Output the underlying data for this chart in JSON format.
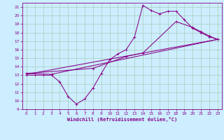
{
  "bg_color": "#cceeff",
  "grid_color": "#aaccbb",
  "line_color": "#880088",
  "marker_color": "#880088",
  "xlim": [
    -0.5,
    23.5
  ],
  "ylim": [
    9,
    21.5
  ],
  "xticks": [
    0,
    1,
    2,
    3,
    4,
    5,
    6,
    7,
    8,
    9,
    10,
    11,
    12,
    13,
    14,
    15,
    16,
    17,
    18,
    19,
    20,
    21,
    22,
    23
  ],
  "yticks": [
    9,
    10,
    11,
    12,
    13,
    14,
    15,
    16,
    17,
    18,
    19,
    20,
    21
  ],
  "xlabel": "Windchill (Refroidissement éolien,°C)",
  "line1_x": [
    0,
    1,
    2,
    3,
    4,
    5,
    6,
    7,
    8,
    9,
    10,
    11,
    12,
    13,
    14,
    15,
    16,
    17,
    18,
    19,
    20,
    21,
    22,
    23
  ],
  "line1_y": [
    13,
    13,
    13,
    13,
    12.2,
    10.5,
    9.6,
    10.2,
    11.5,
    13.2,
    14.8,
    15.5,
    16,
    17.5,
    21.2,
    20.6,
    20.2,
    20.5,
    20.5,
    19.5,
    18.5,
    18,
    17.5,
    17.2
  ],
  "line2_x": [
    0,
    3,
    23
  ],
  "line2_y": [
    13.2,
    13.1,
    17.2
  ],
  "line3_x": [
    0,
    23
  ],
  "line3_y": [
    13.1,
    17.2
  ],
  "line4_x": [
    0,
    8,
    12,
    14,
    18,
    20,
    21,
    22,
    23
  ],
  "line4_y": [
    13.2,
    13.8,
    15.2,
    15.6,
    19.3,
    18.6,
    18.1,
    17.6,
    17.2
  ]
}
